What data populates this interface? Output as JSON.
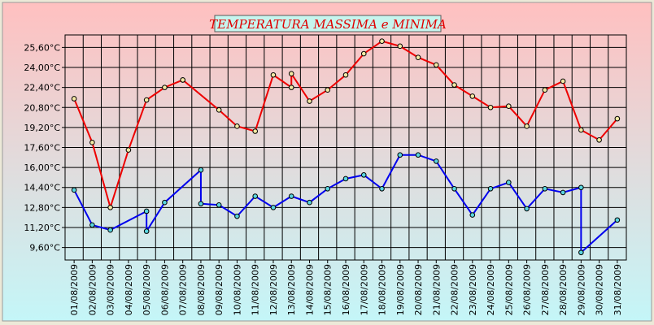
{
  "chart_data": {
    "type": "line",
    "title": "TEMPERATURA MASSIMA e MINIMA",
    "xlabel": "",
    "ylabel": "",
    "categories": [
      "01/08/2009",
      "02/08/2009",
      "03/08/2009",
      "04/08/2009",
      "05/08/2009",
      "06/08/2009",
      "07/08/2009",
      "08/08/2009",
      "09/08/2009",
      "10/08/2009",
      "11/08/2009",
      "12/08/2009",
      "13/08/2009",
      "14/08/2009",
      "15/08/2009",
      "16/08/2009",
      "17/08/2009",
      "18/08/2009",
      "19/08/2009",
      "20/08/2009",
      "21/08/2009",
      "22/08/2009",
      "23/08/2009",
      "24/08/2009",
      "25/08/2009",
      "26/08/2009",
      "27/08/2009",
      "28/08/2009",
      "29/08/2009",
      "30/08/2009",
      "31/08/2009"
    ],
    "yticks": [
      "9,60°C",
      "11,20°C",
      "12,80°C",
      "14,40°C",
      "16,00°C",
      "17,60°C",
      "19,20°C",
      "20,80°C",
      "22,40°C",
      "24,00°C",
      "25,60°C"
    ],
    "ylim": [
      8.6,
      26.6
    ],
    "grid": true,
    "series": [
      {
        "color": "#ee0000",
        "points": [
          [
            "01/08/2009",
            21.5
          ],
          [
            "02/08/2009",
            18.0
          ],
          [
            "03/08/2009",
            12.8
          ],
          [
            "04/08/2009",
            17.4
          ],
          [
            "05/08/2009",
            21.4
          ],
          [
            "06/08/2009",
            22.4
          ],
          [
            "07/08/2009",
            23.0
          ],
          [
            "07/08/2009",
            23.0
          ],
          [
            "09/08/2009",
            20.6
          ],
          [
            "10/08/2009",
            19.3
          ],
          [
            "11/08/2009",
            18.9
          ],
          [
            "12/08/2009",
            23.4
          ],
          [
            "13/08/2009",
            22.4
          ],
          [
            "13/08/2009",
            23.5
          ],
          [
            "14/08/2009",
            21.3
          ],
          [
            "15/08/2009",
            22.2
          ],
          [
            "16/08/2009",
            23.4
          ],
          [
            "17/08/2009",
            25.1
          ],
          [
            "18/08/2009",
            26.1
          ],
          [
            "19/08/2009",
            25.7
          ],
          [
            "20/08/2009",
            24.8
          ],
          [
            "21/08/2009",
            24.2
          ],
          [
            "22/08/2009",
            22.6
          ],
          [
            "23/08/2009",
            21.7
          ],
          [
            "24/08/2009",
            20.8
          ],
          [
            "25/08/2009",
            20.9
          ],
          [
            "26/08/2009",
            19.3
          ],
          [
            "27/08/2009",
            22.2
          ],
          [
            "28/08/2009",
            22.9
          ],
          [
            "29/08/2009",
            19.0
          ],
          [
            "30/08/2009",
            18.2
          ],
          [
            "31/08/2009",
            19.9
          ]
        ]
      },
      {
        "color": "#0000ee",
        "points": [
          [
            "01/08/2009",
            14.2
          ],
          [
            "02/08/2009",
            11.4
          ],
          [
            "03/08/2009",
            11.0
          ],
          [
            "05/08/2009",
            12.5
          ],
          [
            "05/08/2009",
            10.9
          ],
          [
            "06/08/2009",
            13.2
          ],
          [
            "08/08/2009",
            15.8
          ],
          [
            "08/08/2009",
            13.1
          ],
          [
            "09/08/2009",
            13.0
          ],
          [
            "10/08/2009",
            12.1
          ],
          [
            "11/08/2009",
            13.7
          ],
          [
            "12/08/2009",
            12.8
          ],
          [
            "13/08/2009",
            13.7
          ],
          [
            "14/08/2009",
            13.2
          ],
          [
            "15/08/2009",
            14.3
          ],
          [
            "16/08/2009",
            15.1
          ],
          [
            "17/08/2009",
            15.4
          ],
          [
            "18/08/2009",
            14.3
          ],
          [
            "19/08/2009",
            17.0
          ],
          [
            "20/08/2009",
            17.0
          ],
          [
            "21/08/2009",
            16.5
          ],
          [
            "22/08/2009",
            14.3
          ],
          [
            "23/08/2009",
            12.2
          ],
          [
            "24/08/2009",
            14.3
          ],
          [
            "25/08/2009",
            14.8
          ],
          [
            "26/08/2009",
            12.7
          ],
          [
            "27/08/2009",
            14.3
          ],
          [
            "28/08/2009",
            14.0
          ],
          [
            "29/08/2009",
            14.4
          ],
          [
            "29/08/2009",
            9.2
          ],
          [
            "31/08/2009",
            11.8
          ]
        ]
      }
    ]
  }
}
